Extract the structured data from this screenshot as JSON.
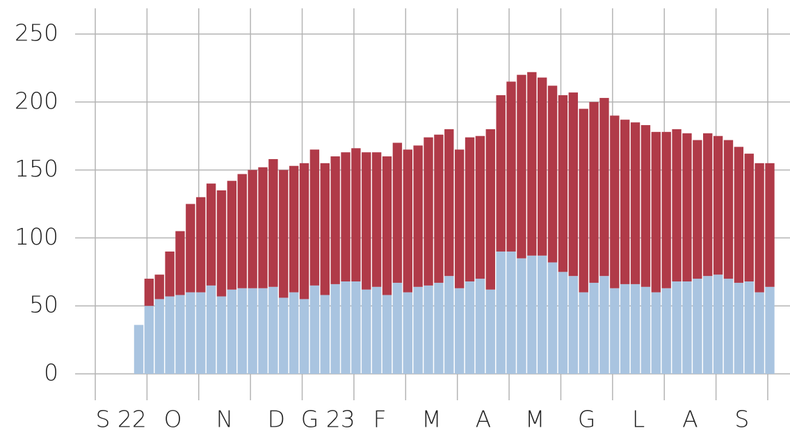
{
  "chart_data": {
    "type": "stacked-bar",
    "months": [
      "S 22",
      "O",
      "N",
      "D",
      "G 23",
      "F",
      "M",
      "A",
      "M",
      "G",
      "L",
      "A",
      "S"
    ],
    "x": [
      0.75,
      0.95,
      1.15,
      1.35,
      1.55,
      1.75,
      1.95,
      2.15,
      2.35,
      2.55,
      2.75,
      2.95,
      3.15,
      3.35,
      3.55,
      3.75,
      3.95,
      4.15,
      4.35,
      4.55,
      4.75,
      4.95,
      5.15,
      5.35,
      5.55,
      5.75,
      5.95,
      6.15,
      6.35,
      6.55,
      6.75,
      6.95,
      7.15,
      7.35,
      7.55,
      7.75,
      7.95,
      8.15,
      8.35,
      8.55,
      8.75,
      8.95,
      9.15,
      9.35,
      9.55,
      9.75,
      9.95,
      10.15,
      10.35,
      10.55,
      10.75,
      10.95,
      11.15,
      11.35,
      11.55,
      11.75,
      11.95,
      12.15,
      12.35,
      12.55,
      12.75,
      12.95
    ],
    "series": [
      {
        "color": "#a9c4e0",
        "values": [
          36,
          50,
          55,
          57,
          58,
          60,
          60,
          65,
          57,
          62,
          63,
          63,
          63,
          64,
          56,
          60,
          55,
          65,
          58,
          66,
          68,
          68,
          62,
          64,
          58,
          67,
          60,
          64,
          65,
          67,
          72,
          63,
          68,
          70,
          62,
          90,
          90,
          85,
          87,
          87,
          82,
          75,
          72,
          60,
          67,
          72,
          63,
          66,
          66,
          64,
          60,
          63,
          68,
          68,
          70,
          72,
          73,
          70,
          67,
          68,
          60,
          64
        ]
      },
      {
        "color": "#b03a48",
        "values": [
          0,
          20,
          18,
          33,
          47,
          65,
          70,
          75,
          78,
          80,
          84,
          87,
          89,
          94,
          94,
          93,
          100,
          100,
          97,
          94,
          95,
          98,
          101,
          99,
          102,
          103,
          105,
          104,
          109,
          109,
          108,
          102,
          106,
          105,
          118,
          115,
          125,
          135,
          135,
          131,
          130,
          130,
          135,
          135,
          133,
          131,
          127,
          121,
          119,
          119,
          118,
          115,
          112,
          109,
          102,
          105,
          102,
          102,
          100,
          94,
          95,
          91
        ]
      }
    ],
    "xlim": [
      0,
      13
    ],
    "xticks": [
      0,
      1,
      2,
      3,
      4,
      5,
      6,
      7,
      8,
      9,
      10,
      11,
      12,
      13
    ],
    "ylim": [
      0,
      250
    ],
    "yticks": [
      0,
      50,
      100,
      150,
      200,
      250
    ],
    "grid": true
  }
}
